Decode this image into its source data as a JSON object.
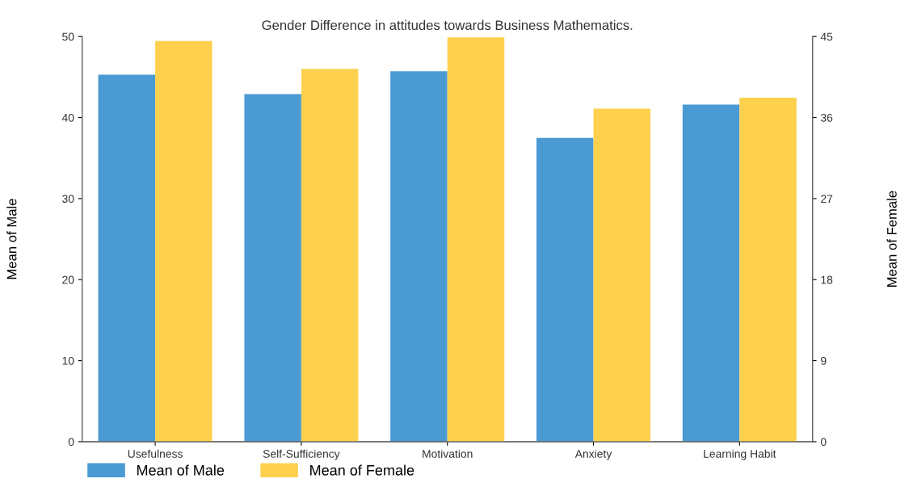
{
  "chart_data": {
    "type": "bar",
    "title": "Gender Difference in attitudes towards Business Mathematics.",
    "categories": [
      "Usefulness",
      "Self-Sufficiency",
      "Motivation",
      "Anxiety",
      "Learning Habit"
    ],
    "series": [
      {
        "name": "Mean of Male",
        "color": "#4a9ad4",
        "values": [
          45.3,
          42.9,
          45.7,
          37.5,
          41.6
        ]
      },
      {
        "name": "Mean of Female",
        "color": "#fdd14e",
        "axis": "y2",
        "values": [
          44.5,
          41.4,
          44.9,
          37.0,
          38.2
        ]
      }
    ],
    "ylabel": "Mean of Male",
    "y2label": "Mean of Female",
    "ylim": [
      0,
      50
    ],
    "yticks": [
      0,
      10,
      20,
      30,
      40,
      50
    ],
    "y2lim": [
      0,
      45
    ],
    "y2ticks": [
      0,
      9,
      18,
      27,
      36,
      45
    ],
    "grid": false,
    "legend": "bottom left"
  }
}
